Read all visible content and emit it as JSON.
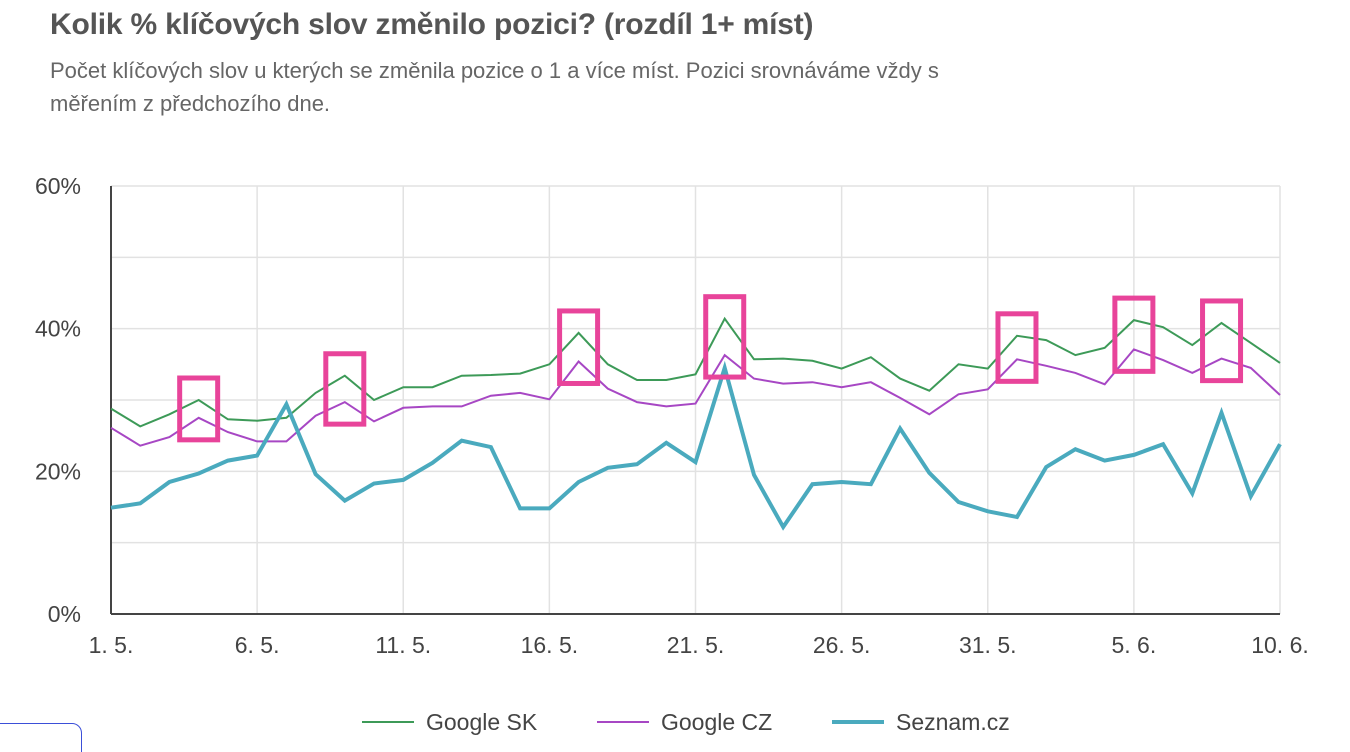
{
  "title": "Kolik % klíčových slov změnilo pozici? (rozdíl 1+ míst)",
  "subtitle": "Počet klíčových slov u kterých se změnila pozice o 1 a více míst. Pozici srovnáváme vždy s měřením z předchozího dne.",
  "colors": {
    "google_sk": "#3d9a58",
    "google_cz": "#a747c4",
    "seznam": "#4aaabe",
    "highlight": "#e8449a",
    "grid": "#e2e2e2",
    "axis": "#444444"
  },
  "chart_data": {
    "type": "line",
    "x": [
      "1. 5.",
      "2. 5.",
      "3. 5.",
      "4. 5.",
      "5. 5.",
      "6. 5.",
      "7. 5.",
      "8. 5.",
      "9. 5.",
      "10. 5.",
      "11. 5.",
      "12. 5.",
      "13. 5.",
      "14. 5.",
      "15. 5.",
      "16. 5.",
      "17. 5.",
      "18. 5.",
      "19. 5.",
      "20. 5.",
      "21. 5.",
      "22. 5.",
      "23. 5.",
      "24. 5.",
      "25. 5.",
      "26. 5.",
      "27. 5.",
      "28. 5.",
      "29. 5.",
      "30. 5.",
      "31. 5.",
      "1. 6.",
      "2. 6.",
      "3. 6.",
      "4. 6.",
      "5. 6.",
      "6. 6.",
      "7. 6.",
      "8. 6.",
      "9. 6.",
      "10. 6."
    ],
    "x_tick_labels": [
      "1. 5.",
      "6. 5.",
      "11. 5.",
      "16. 5.",
      "21. 5.",
      "26. 5.",
      "31. 5.",
      "5. 6.",
      "10. 6."
    ],
    "x_tick_indices": [
      0,
      5,
      10,
      15,
      20,
      25,
      30,
      35,
      40
    ],
    "y_tick_labels": [
      "0%",
      "20%",
      "40%",
      "60%"
    ],
    "y_ticks": [
      0,
      20,
      40,
      60
    ],
    "ylim": [
      0,
      60
    ],
    "series": [
      {
        "name": "Google SK",
        "key": "google_sk",
        "values": [
          28.8,
          26.3,
          28.0,
          30.0,
          27.3,
          27.1,
          27.5,
          31.0,
          33.4,
          30.0,
          31.8,
          31.8,
          33.4,
          33.5,
          33.7,
          35.0,
          39.4,
          35.0,
          32.8,
          32.8,
          33.6,
          41.4,
          35.7,
          35.8,
          35.5,
          34.4,
          36.0,
          33.0,
          31.3,
          35.0,
          34.4,
          39.0,
          38.4,
          36.3,
          37.3,
          41.2,
          40.2,
          37.7,
          40.8,
          38.0,
          35.2
        ]
      },
      {
        "name": "Google CZ",
        "key": "google_cz",
        "values": [
          26.1,
          23.6,
          24.8,
          27.5,
          25.5,
          24.2,
          24.2,
          27.8,
          29.7,
          27.0,
          28.9,
          29.1,
          29.1,
          30.6,
          31.0,
          30.1,
          35.4,
          31.6,
          29.7,
          29.1,
          29.5,
          36.3,
          33.0,
          32.3,
          32.5,
          31.8,
          32.5,
          30.3,
          28.0,
          30.8,
          31.5,
          35.7,
          34.8,
          33.8,
          32.2,
          37.1,
          35.6,
          33.8,
          35.8,
          34.5,
          30.7
        ]
      },
      {
        "name": "Seznam.cz",
        "key": "seznam",
        "values": [
          14.9,
          15.5,
          18.5,
          19.7,
          21.5,
          22.2,
          29.4,
          19.6,
          15.9,
          18.3,
          18.8,
          21.2,
          24.3,
          23.4,
          14.8,
          14.8,
          18.5,
          20.5,
          21.0,
          24.0,
          21.3,
          34.5,
          19.5,
          12.2,
          18.2,
          18.5,
          18.2,
          26.0,
          19.8,
          15.7,
          14.4,
          13.6,
          20.6,
          23.1,
          21.5,
          22.3,
          23.8,
          16.9,
          28.2,
          16.5,
          23.8
        ]
      }
    ],
    "highlights_at": [
      3,
      8,
      16,
      21,
      31,
      35,
      38
    ],
    "legend": [
      "Google SK",
      "Google CZ",
      "Seznam.cz"
    ],
    "legend_position": "bottom",
    "grid": true
  }
}
